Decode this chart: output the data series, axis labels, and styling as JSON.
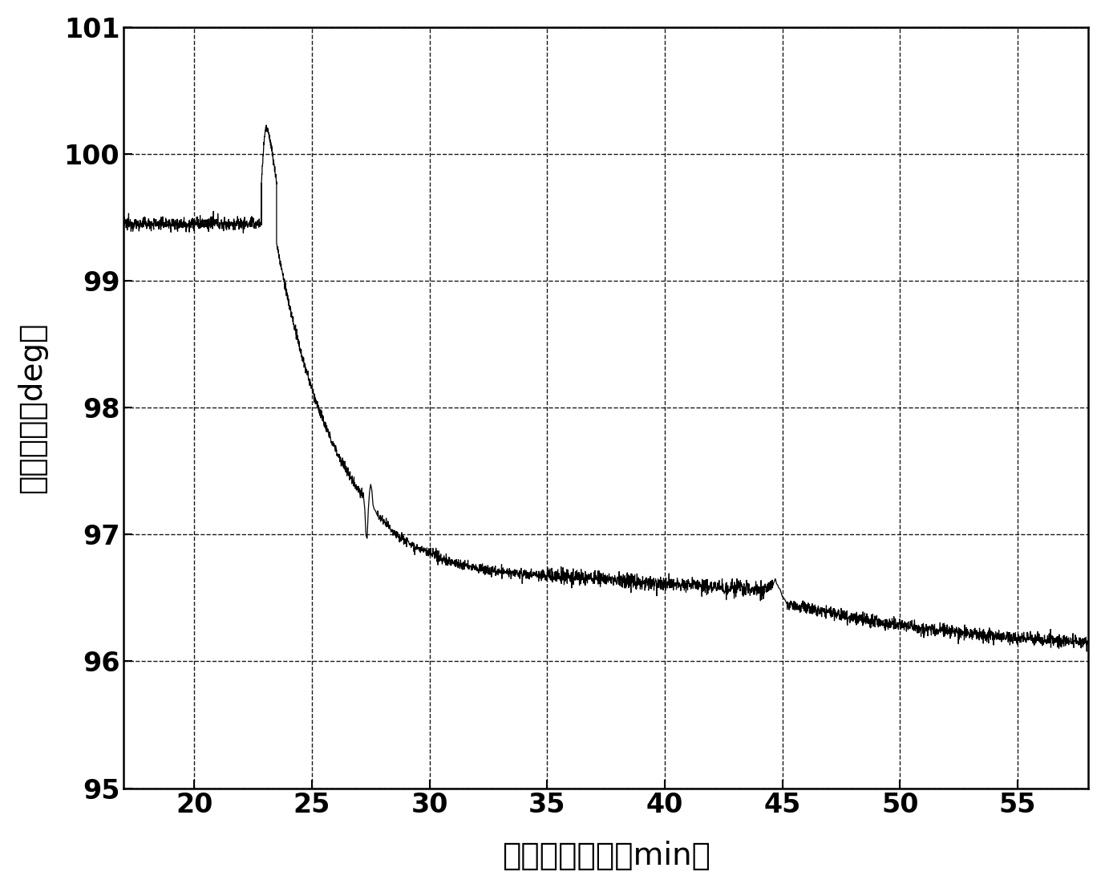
{
  "title": "",
  "xlabel": "杂交反应时间（min）",
  "ylabel": "相位变化（deg）",
  "xlim": [
    17,
    58
  ],
  "ylim": [
    95,
    101
  ],
  "xticks": [
    20,
    25,
    30,
    35,
    40,
    45,
    50,
    55
  ],
  "yticks": [
    95,
    96,
    97,
    98,
    99,
    100,
    101
  ],
  "line_color": "#000000",
  "background_color": "#ffffff",
  "xlabel_fontsize": 28,
  "ylabel_fontsize": 28,
  "tick_fontsize": 24
}
